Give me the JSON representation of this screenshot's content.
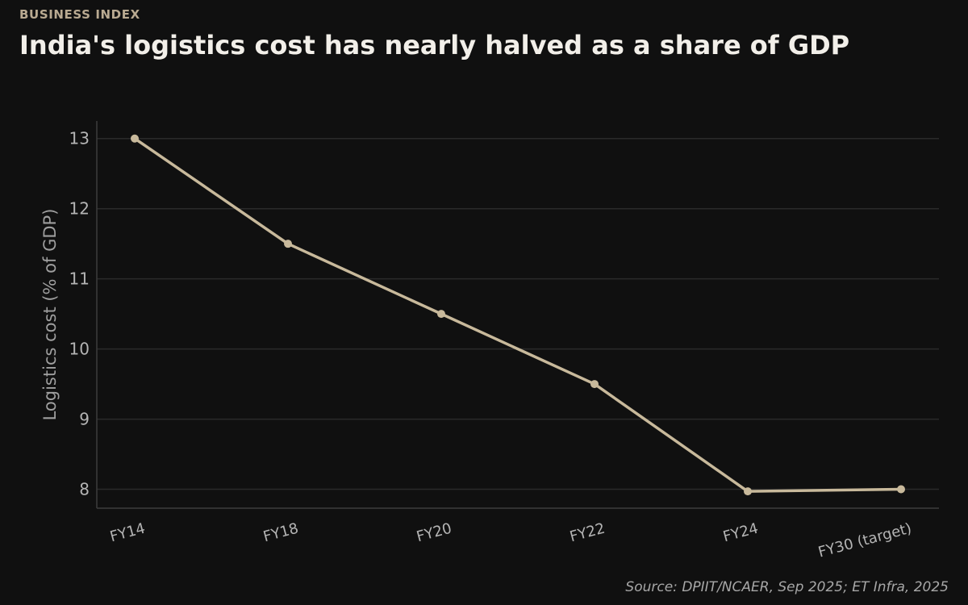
{
  "header": {
    "kicker": "BUSINESS INDEX",
    "title": "India's logistics cost has nearly halved as a share of GDP"
  },
  "footer": {
    "source": "Source: DPIIT/NCAER, Sep 2025; ET Infra, 2025"
  },
  "colors": {
    "background": "#101010",
    "line": "#c8b99b",
    "grid": "#2a2a2a",
    "axis": "#3c3c3c"
  },
  "chart_data": {
    "type": "line",
    "title": "India's logistics cost has nearly halved as a share of GDP",
    "xlabel": "",
    "ylabel": "Logistics cost (% of GDP)",
    "categories": [
      "FY14",
      "FY18",
      "FY20",
      "FY22",
      "FY24",
      "FY30 (target)"
    ],
    "series": [
      {
        "values": [
          13.0,
          11.5,
          10.5,
          9.5,
          7.97,
          8.0
        ]
      }
    ],
    "yticks": [
      8,
      9,
      10,
      11,
      12,
      13
    ],
    "ylim": [
      7.73,
      13.25
    ],
    "grid": true,
    "legend": "none"
  }
}
